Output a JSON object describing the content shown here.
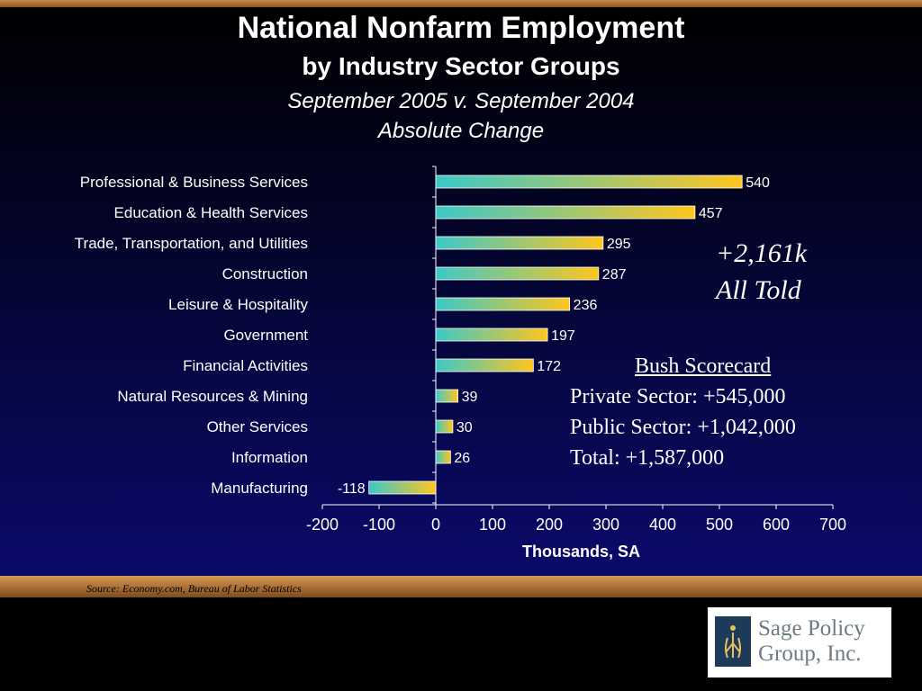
{
  "slide": {
    "title_line1": "National Nonfarm Employment",
    "title_line2": "by Industry Sector Groups",
    "subtitle_line1": "September 2005 v. September 2004",
    "subtitle_line2": "Absolute Change"
  },
  "annotation": {
    "total_line1": "+2,161k",
    "total_line2": "All Told"
  },
  "scorecard": {
    "heading": "Bush Scorecard",
    "private": "Private Sector:  +545,000",
    "public": "Public Sector:  +1,042,000",
    "total": "Total: +1,587,000"
  },
  "source": "Source: Economy.com, Bureau of Labor Statistics",
  "logo": {
    "line1": "Sage Policy",
    "line2": "Group, Inc."
  },
  "colors": {
    "bar_start": "#3cc8c8",
    "bar_end": "#ffc61e",
    "text": "#ffffff"
  },
  "chart_data": {
    "type": "bar",
    "orientation": "horizontal",
    "categories": [
      "Professional & Business Services",
      "Education & Health Services",
      "Trade, Transportation, and Utilities",
      "Construction",
      "Leisure & Hospitality",
      "Government",
      "Financial Activities",
      "Natural Resources & Mining",
      "Other Services",
      "Information",
      "Manufacturing"
    ],
    "values": [
      540,
      457,
      295,
      287,
      236,
      197,
      172,
      39,
      30,
      26,
      -118
    ],
    "data_labels": [
      "540",
      "457",
      "295",
      "287",
      "236",
      "197",
      "172",
      "39",
      "30",
      "26",
      "-118"
    ],
    "xlim": [
      -200,
      700
    ],
    "xticks": [
      -200,
      -100,
      0,
      100,
      200,
      300,
      400,
      500,
      600,
      700
    ],
    "xtick_labels": [
      "-200",
      "-100",
      "0",
      "100",
      "200",
      "300",
      "400",
      "500",
      "600",
      "700"
    ],
    "xlabel": "Thousands, SA",
    "title": "National Nonfarm Employment"
  }
}
